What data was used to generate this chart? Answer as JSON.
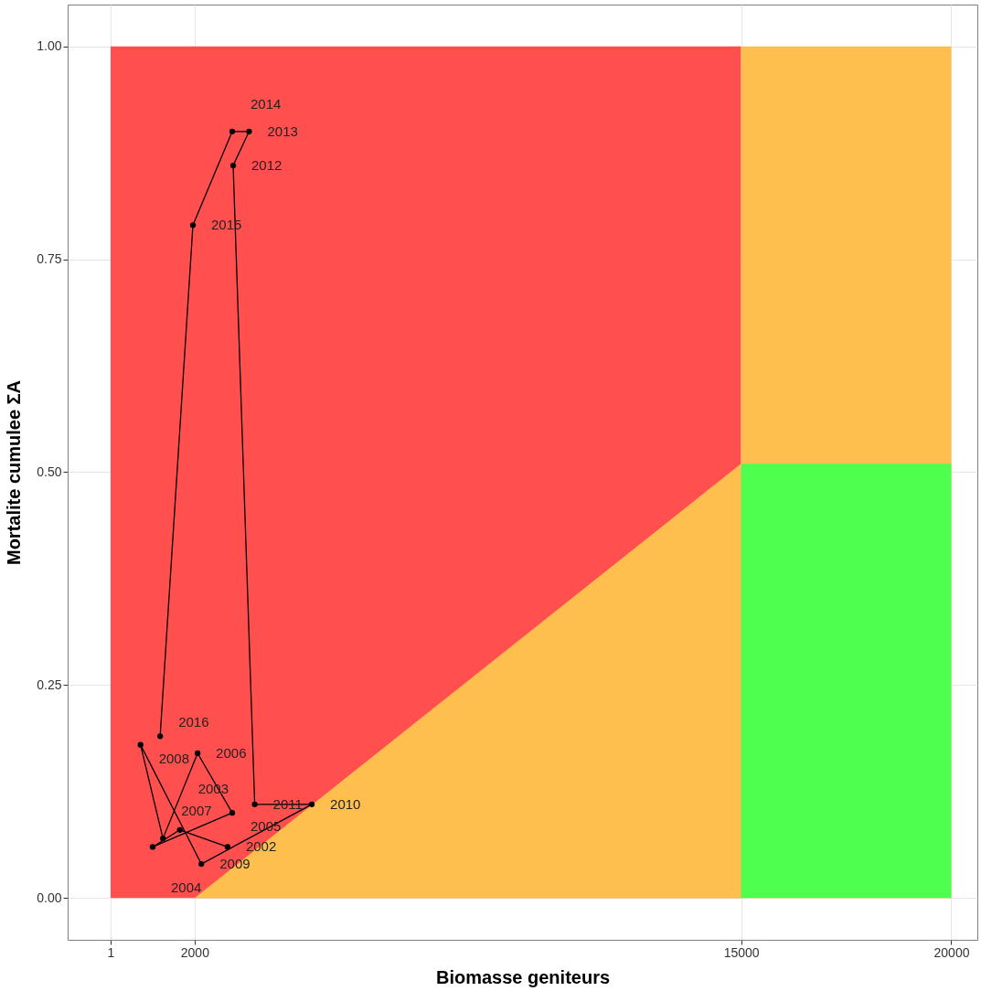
{
  "chart_data": {
    "type": "line",
    "xlabel": "Biomasse geniteurs",
    "ylabel": "Mortalite cumulee  ΣA",
    "xlim": [
      -1020,
      20620
    ],
    "ylim": [
      -0.049,
      1.049
    ],
    "xticks": [
      1,
      2000,
      15000,
      20000
    ],
    "yticks": [
      {
        "value": 0,
        "label": "0.00"
      },
      {
        "value": 0.25,
        "label": "0.25"
      },
      {
        "value": 0.5,
        "label": "0.50"
      },
      {
        "value": 0.75,
        "label": "0.75"
      },
      {
        "value": 1,
        "label": "1.00"
      }
    ],
    "grid": true,
    "marker": "circle",
    "line_style": "solid",
    "series": [
      {
        "type": "area",
        "marker": "none",
        "color": "#ff4f4f",
        "x": [
          1,
          15000
        ],
        "values": [
          1,
          1
        ]
      },
      {
        "type": "area",
        "marker": "none",
        "color": "#ffbf4f",
        "x": [
          15000,
          20000
        ],
        "values": [
          1,
          1
        ]
      },
      {
        "type": "area",
        "marker": "none",
        "color": "#ffbf4f",
        "x": [
          2000,
          15000
        ],
        "values": [
          0,
          0.51
        ]
      },
      {
        "type": "area",
        "marker": "none",
        "color": "#4fff4f",
        "x": [
          15000,
          20000
        ],
        "values": [
          0.51,
          0.51
        ]
      },
      {
        "color": "#000000",
        "x": [
          2784,
          1648,
          1002,
          2895,
          2071,
          1247,
          713,
          2160,
          4788,
          3430,
          2917,
          3296,
          2895,
          1960,
          1180
        ],
        "values": [
          0.06,
          0.08,
          0.06,
          0.1,
          0.17,
          0.07,
          0.18,
          0.04,
          0.11,
          0.11,
          0.86,
          0.9,
          0.9,
          0.79,
          0.19
        ]
      }
    ],
    "annotations": [
      {
        "text": "2002",
        "x": 2784,
        "y": 0.06
      },
      {
        "text": "2003",
        "x": 1648,
        "y": 0.08
      },
      {
        "text": "2004",
        "x": 1002,
        "y": 0.06
      },
      {
        "text": "2005",
        "x": 2895,
        "y": 0.1
      },
      {
        "text": "2006",
        "x": 2071,
        "y": 0.17
      },
      {
        "text": "2007",
        "x": 1247,
        "y": 0.07
      },
      {
        "text": "2008",
        "x": 713,
        "y": 0.18
      },
      {
        "text": "2009",
        "x": 2160,
        "y": 0.04
      },
      {
        "text": "2010",
        "x": 4788,
        "y": 0.11
      },
      {
        "text": "2011",
        "x": 3430,
        "y": 0.11
      },
      {
        "text": "2012",
        "x": 2917,
        "y": 0.86
      },
      {
        "text": "2013",
        "x": 3296,
        "y": 0.9
      },
      {
        "text": "2014",
        "x": 2895,
        "y": 0.9
      },
      {
        "text": "2015",
        "x": 1960,
        "y": 0.79
      },
      {
        "text": "2016",
        "x": 1180,
        "y": 0.19
      }
    ]
  }
}
